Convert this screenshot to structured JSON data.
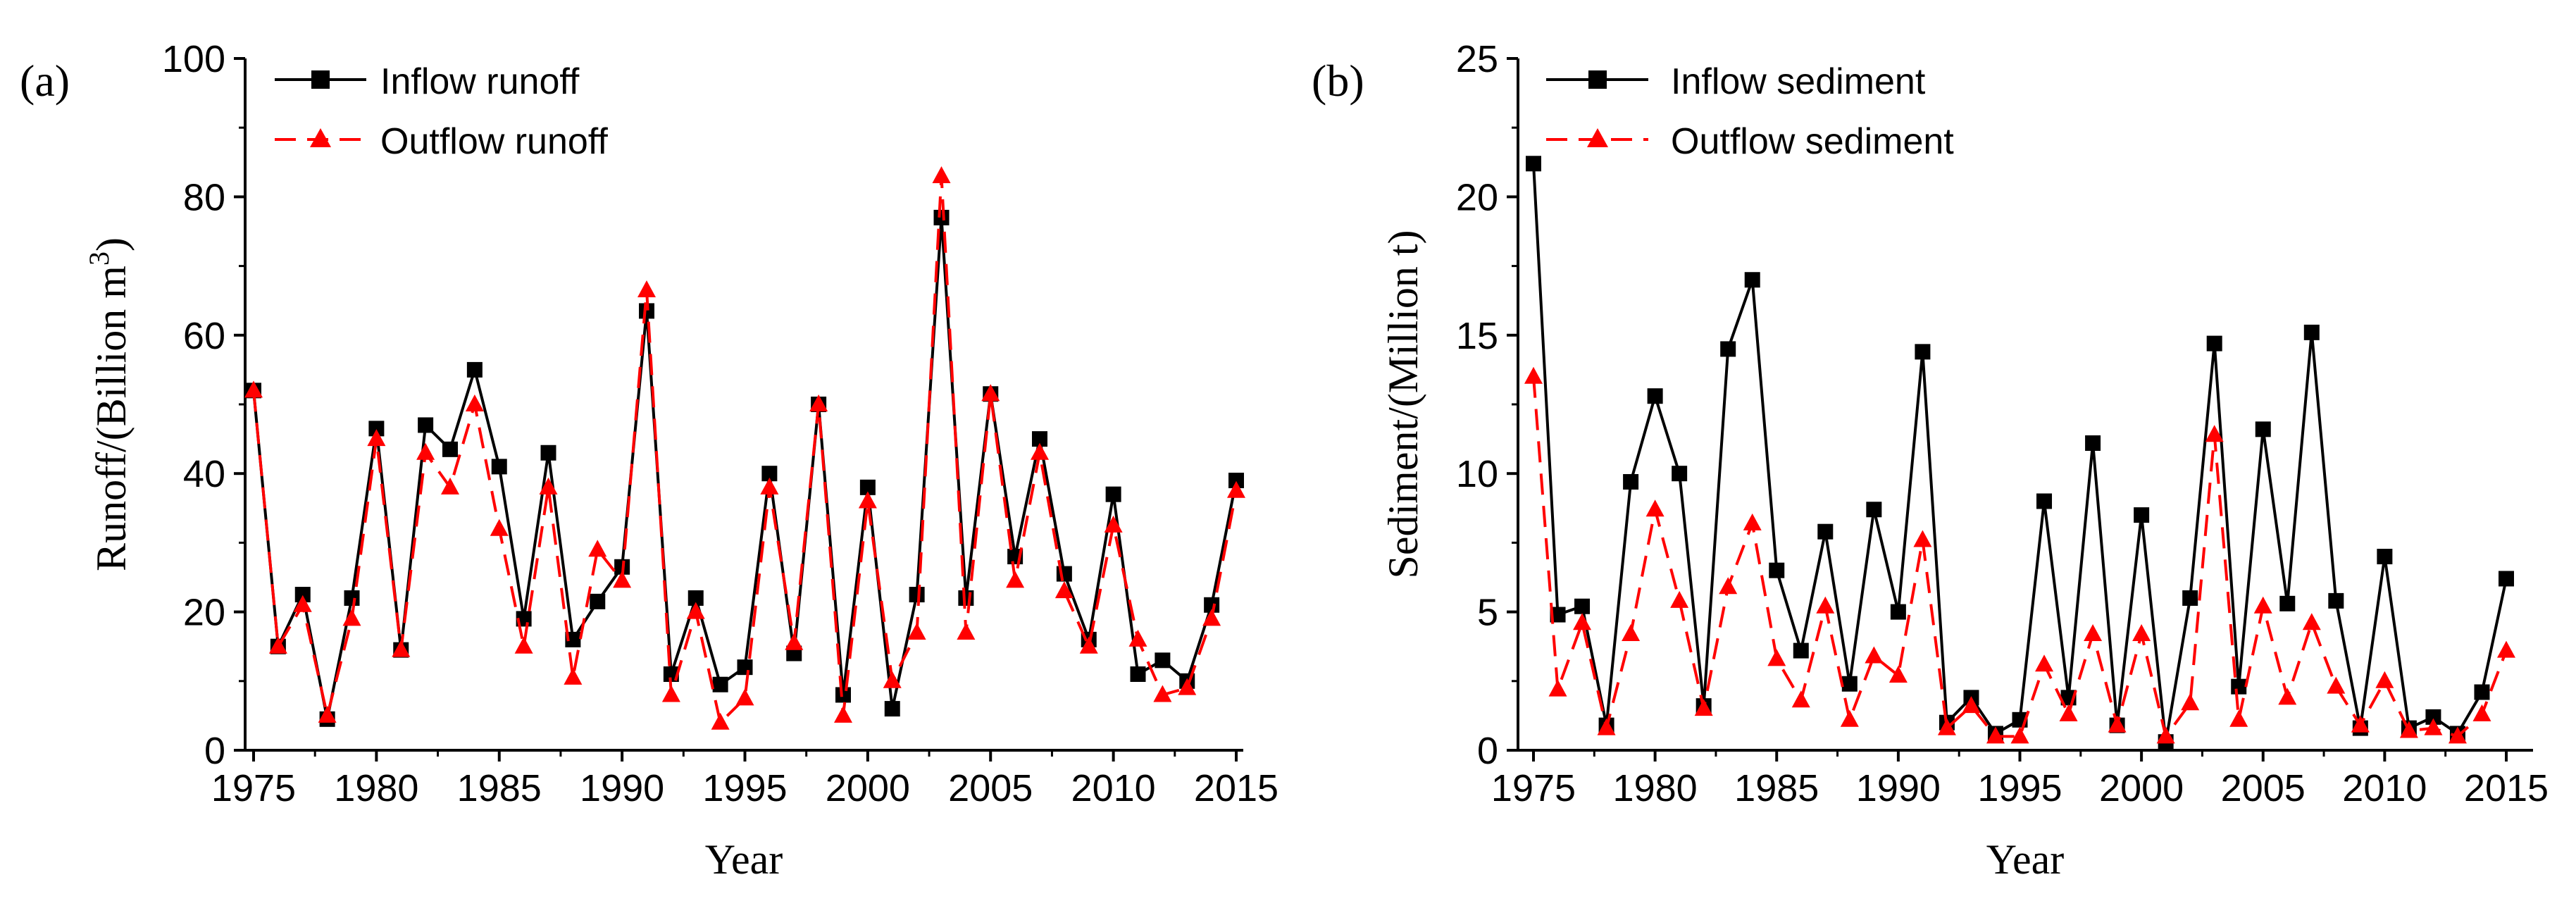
{
  "chart_data": [
    {
      "type": "line",
      "panel_label": "(a)",
      "xlabel": "Year",
      "ylabel": "Runoff/(Billion m",
      "ylabel_sup": "3",
      "ylabel_close": ")",
      "xlim": [
        1975,
        2015
      ],
      "ylim": [
        0,
        100
      ],
      "xticks": [
        "1975",
        "1980",
        "1985",
        "1990",
        "1995",
        "2000",
        "2005",
        "2010",
        "2015"
      ],
      "yticks": [
        "0",
        "20",
        "40",
        "60",
        "80",
        "100"
      ],
      "legend_position": "top-left",
      "grid": false,
      "x": [
        1975,
        1976,
        1977,
        1978,
        1979,
        1980,
        1981,
        1982,
        1983,
        1984,
        1985,
        1986,
        1987,
        1988,
        1989,
        1990,
        1991,
        1992,
        1993,
        1994,
        1995,
        1996,
        1997,
        1998,
        1999,
        2000,
        2001,
        2002,
        2003,
        2004,
        2005,
        2006,
        2007,
        2008,
        2009,
        2010,
        2011,
        2012,
        2013,
        2014,
        2015
      ],
      "series": [
        {
          "name": "Inflow runoff",
          "color": "#000000",
          "marker": "square",
          "dash": "solid",
          "values": [
            52,
            15,
            22.5,
            4.5,
            22,
            46.5,
            14.5,
            47,
            43.5,
            55,
            41,
            19,
            43,
            16,
            21.5,
            26.5,
            63.5,
            11,
            22,
            9.5,
            12,
            40,
            14,
            50,
            8,
            38,
            6,
            22.5,
            77,
            22,
            51.5,
            28,
            45,
            25.5,
            16,
            37,
            11,
            13,
            10,
            21,
            39
          ]
        },
        {
          "name": "Outflow runoff",
          "color": "#ff0000",
          "marker": "triangle",
          "dash": "dashed",
          "values": [
            52,
            15,
            21,
            5,
            19,
            45,
            14.5,
            43,
            38,
            50,
            32,
            15,
            38,
            10.5,
            29,
            24.5,
            66.5,
            8,
            20,
            4,
            7.5,
            38,
            15.5,
            50,
            5,
            36,
            10,
            17,
            83,
            17,
            51.5,
            24.5,
            43,
            23,
            15,
            32.5,
            16,
            8,
            9,
            19,
            37.5
          ]
        }
      ]
    },
    {
      "type": "line",
      "panel_label": "(b)",
      "xlabel": "Year",
      "ylabel": "Sediment/(Million t)",
      "xlim": [
        1975,
        2015
      ],
      "ylim": [
        0,
        25
      ],
      "xticks": [
        "1975",
        "1980",
        "1985",
        "1990",
        "1995",
        "2000",
        "2005",
        "2010",
        "2015"
      ],
      "yticks": [
        "0",
        "5",
        "10",
        "15",
        "20",
        "25"
      ],
      "legend_position": "top-left",
      "grid": false,
      "x": [
        1975,
        1976,
        1977,
        1978,
        1979,
        1980,
        1981,
        1982,
        1983,
        1984,
        1985,
        1986,
        1987,
        1988,
        1989,
        1990,
        1991,
        1992,
        1993,
        1994,
        1995,
        1996,
        1997,
        1998,
        1999,
        2000,
        2001,
        2002,
        2003,
        2004,
        2005,
        2006,
        2007,
        2008,
        2009,
        2010,
        2011,
        2012,
        2013,
        2014,
        2015
      ],
      "series": [
        {
          "name": "Inflow sediment",
          "color": "#000000",
          "marker": "square",
          "dash": "solid",
          "values": [
            21.2,
            4.9,
            5.2,
            0.9,
            9.7,
            12.8,
            10,
            1.6,
            14.5,
            17,
            6.5,
            3.6,
            7.9,
            2.4,
            8.7,
            5,
            14.4,
            1,
            1.9,
            0.6,
            1.1,
            9,
            1.9,
            11.1,
            0.9,
            8.5,
            0.3,
            5.5,
            14.7,
            2.3,
            11.6,
            5.3,
            15.1,
            5.4,
            0.8,
            7,
            0.8,
            1.2,
            0.6,
            2.1,
            6.2
          ]
        },
        {
          "name": "Outflow sediment",
          "color": "#ff0000",
          "marker": "triangle",
          "dash": "dashed",
          "values": [
            13.5,
            2.2,
            4.6,
            0.8,
            4.2,
            8.7,
            5.4,
            1.5,
            5.9,
            8.2,
            3.3,
            1.8,
            5.2,
            1.1,
            3.4,
            2.7,
            7.6,
            0.8,
            1.6,
            0.5,
            0.5,
            3.1,
            1.3,
            4.2,
            0.9,
            4.2,
            0.5,
            1.7,
            11.4,
            1.1,
            5.2,
            1.9,
            4.6,
            2.3,
            0.9,
            2.5,
            0.7,
            0.8,
            0.5,
            1.3,
            3.6
          ]
        }
      ]
    }
  ]
}
